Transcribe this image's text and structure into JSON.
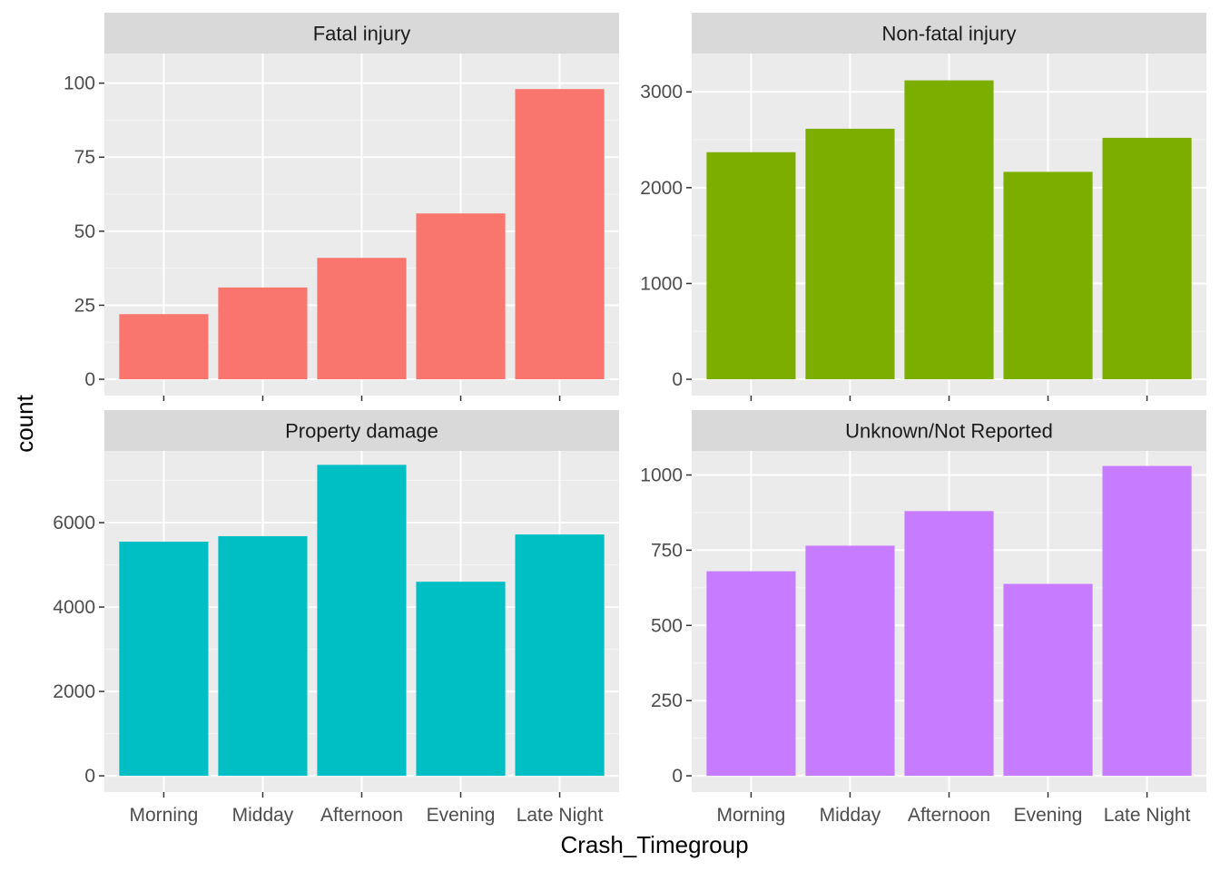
{
  "chart_data": {
    "type": "bar",
    "layout": "facet-wrap 2x2, free y scales",
    "xlabel": "Crash_Timegroup",
    "ylabel": "count",
    "categories": [
      "Morning",
      "Midday",
      "Afternoon",
      "Evening",
      "Late Night"
    ],
    "grid": true,
    "legend": "none",
    "facets": [
      {
        "title": "Fatal injury",
        "color": "#F8766D",
        "values": [
          22,
          31,
          41,
          56,
          98
        ],
        "ylim": [
          0,
          110
        ],
        "yticks": [
          0,
          25,
          50,
          75,
          100
        ]
      },
      {
        "title": "Non-fatal injury",
        "color": "#7CAE00",
        "values": [
          2370,
          2615,
          3120,
          2165,
          2520
        ],
        "ylim": [
          0,
          3400
        ],
        "yticks": [
          0,
          1000,
          2000,
          3000
        ]
      },
      {
        "title": "Property damage",
        "color": "#00BFC4",
        "values": [
          5550,
          5680,
          7370,
          4600,
          5720
        ],
        "ylim": [
          0,
          7700
        ],
        "yticks": [
          0,
          2000,
          4000,
          6000
        ]
      },
      {
        "title": "Unknown/Not Reported",
        "color": "#C77CFF",
        "values": [
          680,
          765,
          880,
          638,
          1030
        ],
        "ylim": [
          0,
          1080
        ],
        "yticks": [
          0,
          250,
          500,
          750,
          1000
        ]
      }
    ]
  }
}
